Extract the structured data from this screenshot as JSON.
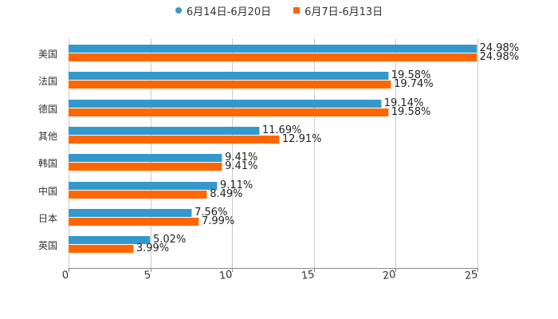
{
  "legend": [
    {
      "label": "6月14日-6月20日",
      "color": "#3399cc",
      "shape": "dot"
    },
    {
      "label": "6月7日-6月13日",
      "color": "#ff6600",
      "shape": "square"
    }
  ],
  "axis": {
    "ticks": [
      "0",
      "5",
      "10",
      "15",
      "20",
      "25"
    ]
  },
  "chart_data": {
    "type": "bar",
    "orientation": "horizontal",
    "title": "",
    "xlabel": "",
    "ylabel": "",
    "xlim": [
      0,
      25
    ],
    "grid": true,
    "legend_position": "top",
    "categories": [
      "美国",
      "法国",
      "德国",
      "其他",
      "韩国",
      "中国",
      "日本",
      "英国"
    ],
    "series": [
      {
        "name": "6月14日-6月20日",
        "color": "#3399cc",
        "values": [
          24.98,
          19.58,
          19.14,
          11.69,
          9.41,
          9.11,
          7.56,
          5.02
        ],
        "labels": [
          "24.98%",
          "19.58%",
          "19.14%",
          "11.69%",
          "9.41%",
          "9.11%",
          "7.56%",
          "5.02%"
        ]
      },
      {
        "name": "6月7日-6月13日",
        "color": "#ff6600",
        "values": [
          24.98,
          19.74,
          19.58,
          12.91,
          9.41,
          8.49,
          7.99,
          3.99
        ],
        "labels": [
          "24.98%",
          "19.74%",
          "19.58%",
          "12.91%",
          "9.41%",
          "8.49%",
          "7.99%",
          "3.99%"
        ]
      }
    ]
  }
}
